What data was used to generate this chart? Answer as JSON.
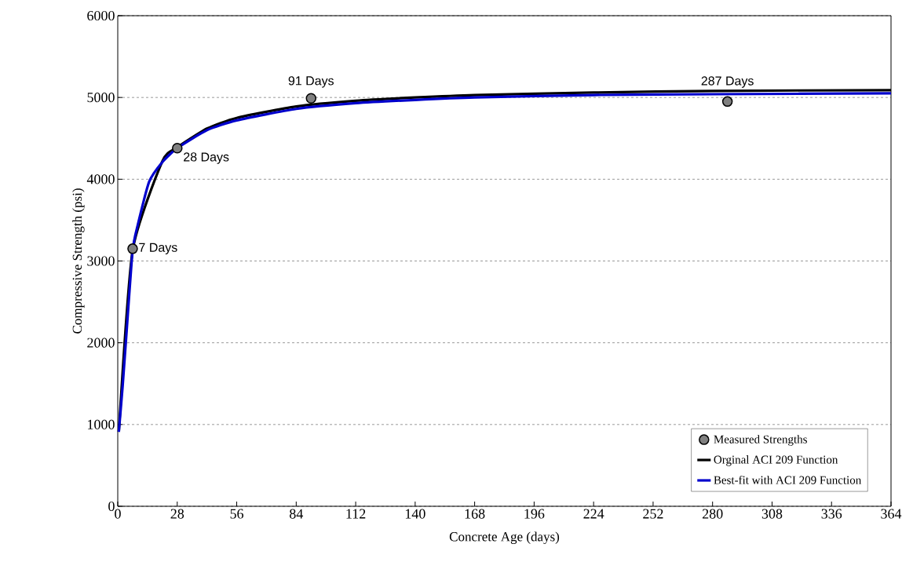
{
  "chart_data": {
    "type": "line",
    "xlabel": "Concrete Age (days)",
    "ylabel": "Compressive Strength (psi)",
    "xlim": [
      0,
      364
    ],
    "ylim": [
      0,
      6000
    ],
    "xticks": [
      0,
      28,
      56,
      84,
      112,
      140,
      168,
      196,
      224,
      252,
      280,
      308,
      336,
      364
    ],
    "yticks": [
      0,
      1000,
      2000,
      3000,
      4000,
      5000,
      6000
    ],
    "grid": "y",
    "legend": "bottom right",
    "marker": "circle",
    "series": [
      {
        "name": "Measured Strengths",
        "type": "scatter",
        "color": "#808080",
        "x": [
          7,
          28,
          91,
          287
        ],
        "values": [
          3150,
          4380,
          4990,
          4950
        ]
      },
      {
        "name": "Orginal ACI 209 Function",
        "marker": "none",
        "color": "#000000",
        "x": [
          0.5,
          2.3,
          4.2,
          7,
          9.5,
          14.8,
          21,
          28,
          42,
          56,
          84,
          112,
          140,
          168,
          224,
          280,
          364
        ],
        "values": [
          910,
          null,
          null,
          3130,
          null,
          null,
          4220,
          4390,
          4620,
          4750,
          4890,
          4960,
          5000,
          5030,
          5060,
          5080,
          5090
        ]
      },
      {
        "name": "Best-fit with ACI 209 Function",
        "marker": "none",
        "color": "#0000cc",
        "x": [
          0.5,
          2.3,
          4.2,
          7,
          9.5,
          14.8,
          21,
          28,
          42,
          56,
          84,
          112,
          140,
          168,
          224,
          280,
          364
        ],
        "values": [
          910,
          1470,
          2150,
          3130,
          3450,
          3970,
          4210,
          4380,
          4600,
          4720,
          4860,
          4930,
          4970,
          5000,
          5030,
          5040,
          5050
        ]
      }
    ],
    "annotations": [
      {
        "text": "7 Days",
        "x": 7,
        "y": 3150
      },
      {
        "text": "28 Days",
        "x": 28,
        "y": 4380
      },
      {
        "text": "91 Days",
        "x": 91,
        "y": 4990
      },
      {
        "text": "287 Days",
        "x": 287,
        "y": 4950
      }
    ]
  }
}
